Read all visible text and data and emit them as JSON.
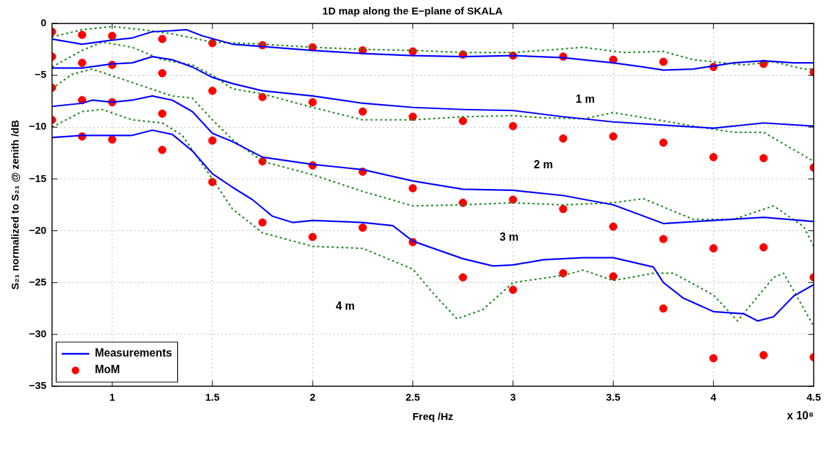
{
  "chart_data": {
    "type": "line",
    "title": "1D map along the E−plane of SKALA",
    "xlabel": "Freq /Hz",
    "ylabel": "S₂₁ normalized to S₂₁ @ zenith /dB",
    "xlim": [
      0.7,
      4.5
    ],
    "xticks": [
      1,
      1.5,
      2,
      2.5,
      3,
      3.5,
      4,
      4.5
    ],
    "ylim": [
      -35,
      0
    ],
    "yticks": [
      -35,
      -30,
      -25,
      -20,
      -15,
      -10,
      -5,
      0
    ],
    "grid": true,
    "legend": "bottom left",
    "annotations": [
      "1 m",
      "2 m",
      "3 m",
      "4 m",
      "x 10⁸"
    ],
    "series": [
      {
        "name": "Measurements",
        "type": "line",
        "color": "#0000ff",
        "line_style": "solid",
        "marker": "none",
        "x": [
          0.7,
          0.85,
          1.0,
          1.1,
          1.2,
          1.3,
          1.37,
          1.45,
          1.6,
          1.8,
          2.0,
          2.25,
          2.5,
          2.75,
          3.0,
          3.25,
          3.5,
          3.65,
          3.75,
          3.9,
          4.0,
          4.1,
          4.25,
          4.4,
          4.5
        ],
        "values": [
          -1.5,
          -2.0,
          -1.6,
          -1.4,
          -0.8,
          -0.7,
          -0.6,
          -1.2,
          -2.0,
          -2.3,
          -2.6,
          -2.9,
          -3.1,
          -3.2,
          -3.1,
          -3.3,
          -3.8,
          -4.2,
          -4.5,
          -4.4,
          -4.1,
          -3.8,
          -3.6,
          -3.8,
          -3.8
        ]
      },
      {
        "type": "line",
        "color": "#0000ff",
        "line_style": "solid",
        "marker": "none",
        "x": [
          0.7,
          0.85,
          1.0,
          1.1,
          1.2,
          1.3,
          1.4,
          1.5,
          1.6,
          1.75,
          2.0,
          2.25,
          2.5,
          2.75,
          3.0,
          3.25,
          3.5,
          3.75,
          4.0,
          4.25,
          4.5
        ],
        "values": [
          -4.3,
          -4.3,
          -3.9,
          -3.8,
          -3.2,
          -3.5,
          -4.2,
          -5.2,
          -5.8,
          -6.5,
          -7.0,
          -7.7,
          -8.1,
          -8.3,
          -8.4,
          -9.0,
          -9.5,
          -9.8,
          -10.1,
          -9.6,
          -9.9
        ]
      },
      {
        "type": "line",
        "color": "#0000ff",
        "line_style": "solid",
        "marker": "none",
        "x": [
          0.7,
          0.85,
          0.9,
          1.0,
          1.1,
          1.2,
          1.3,
          1.4,
          1.5,
          1.6,
          1.75,
          2.0,
          2.25,
          2.5,
          2.75,
          3.0,
          3.25,
          3.5,
          3.75,
          4.0,
          4.25,
          4.5
        ],
        "values": [
          -8.0,
          -7.7,
          -7.4,
          -7.6,
          -7.4,
          -7.0,
          -7.4,
          -8.5,
          -10.6,
          -11.4,
          -12.9,
          -13.6,
          -14.1,
          -15.2,
          -16.0,
          -16.1,
          -16.6,
          -17.5,
          -19.3,
          -19.0,
          -18.7,
          -19.1
        ]
      },
      {
        "type": "line",
        "color": "#0000ff",
        "line_style": "solid",
        "marker": "none",
        "x": [
          0.7,
          0.85,
          1.0,
          1.1,
          1.2,
          1.3,
          1.4,
          1.5,
          1.6,
          1.7,
          1.8,
          1.9,
          2.0,
          2.25,
          2.4,
          2.5,
          2.75,
          2.9,
          3.0,
          3.15,
          3.35,
          3.5,
          3.7,
          3.75,
          3.85,
          4.0,
          4.15,
          4.22,
          4.3,
          4.4,
          4.5
        ],
        "values": [
          -11.0,
          -10.8,
          -10.8,
          -10.8,
          -10.3,
          -10.7,
          -12.3,
          -14.5,
          -15.8,
          -17.0,
          -18.6,
          -19.2,
          -19.0,
          -19.2,
          -19.5,
          -21.0,
          -22.7,
          -23.4,
          -23.3,
          -22.8,
          -22.6,
          -22.6,
          -23.5,
          -25.0,
          -26.5,
          -27.8,
          -28.0,
          -28.7,
          -28.3,
          -26.3,
          -25.2
        ]
      },
      {
        "color": "#1e8c1e",
        "line_style": "dotted",
        "marker": "none",
        "x": [
          0.7,
          0.85,
          1.0,
          1.15,
          1.3,
          1.5,
          1.75,
          2.0,
          2.25,
          2.5,
          2.75,
          3.0,
          3.15,
          3.35,
          3.55,
          3.75,
          3.9,
          4.15,
          4.3,
          4.45,
          4.5
        ],
        "values": [
          -1.3,
          -0.6,
          -0.3,
          -0.6,
          -1.0,
          -1.8,
          -2.0,
          -2.3,
          -2.5,
          -2.6,
          -2.8,
          -2.8,
          -2.6,
          -2.3,
          -2.8,
          -2.7,
          -3.5,
          -4.0,
          -3.7,
          -4.4,
          -4.4
        ]
      },
      {
        "type": "line",
        "color": "#1e8c1e",
        "line_style": "dotted",
        "marker": "none",
        "x": [
          0.7,
          0.85,
          0.95,
          1.1,
          1.25,
          1.4,
          1.5,
          1.6,
          1.75,
          2.0,
          2.25,
          2.5,
          2.75,
          3.0,
          3.15,
          3.35,
          3.5,
          3.75,
          3.9,
          4.1,
          4.25,
          4.5
        ],
        "values": [
          -4.2,
          -2.6,
          -1.8,
          -2.3,
          -3.5,
          -4.0,
          -5.0,
          -6.3,
          -6.8,
          -8.1,
          -9.3,
          -9.3,
          -9.0,
          -8.9,
          -9.1,
          -9.2,
          -8.6,
          -9.4,
          -9.9,
          -10.5,
          -10.5,
          -13.3
        ]
      },
      {
        "type": "line",
        "color": "#1e8c1e",
        "line_style": "dotted",
        "marker": "none",
        "x": [
          0.7,
          0.8,
          0.9,
          1.1,
          1.3,
          1.4,
          1.5,
          1.6,
          1.75,
          2.0,
          2.25,
          2.5,
          2.75,
          3.0,
          3.25,
          3.5,
          3.65,
          3.9,
          4.1,
          4.3,
          4.45,
          4.5
        ],
        "values": [
          -6.3,
          -4.9,
          -4.4,
          -5.7,
          -7.0,
          -7.2,
          -9.3,
          -11.2,
          -13.3,
          -14.6,
          -16.2,
          -17.6,
          -17.5,
          -17.3,
          -17.5,
          -17.3,
          -16.9,
          -18.9,
          -18.9,
          -17.6,
          -19.6,
          -21.5
        ]
      },
      {
        "type": "line",
        "color": "#1e8c1e",
        "line_style": "dotted",
        "marker": "none",
        "x": [
          0.7,
          0.85,
          0.95,
          1.1,
          1.25,
          1.35,
          1.5,
          1.6,
          1.75,
          2.0,
          2.25,
          2.5,
          2.6,
          2.72,
          2.85,
          3.0,
          3.25,
          3.35,
          3.5,
          3.7,
          3.8,
          4.0,
          4.12,
          4.3,
          4.35,
          4.5
        ],
        "values": [
          -10.0,
          -8.5,
          -8.3,
          -9.3,
          -9.6,
          -10.8,
          -15.0,
          -17.9,
          -20.2,
          -21.5,
          -21.7,
          -23.7,
          -26.0,
          -28.5,
          -27.6,
          -25.0,
          -24.3,
          -23.8,
          -24.8,
          -24.1,
          -24.1,
          -26.2,
          -28.7,
          -24.5,
          -24.1,
          -29.2
        ]
      },
      {
        "name": "MoM",
        "type": "scatter",
        "color": "#ff0000",
        "marker": "circle",
        "x": [
          0.7,
          0.85,
          1.0,
          1.25,
          1.5,
          1.75,
          2.0,
          2.25,
          2.5,
          2.75,
          3.0,
          3.25,
          3.5,
          3.75,
          4.0,
          4.25,
          4.5
        ],
        "values": [
          -0.8,
          -1.1,
          -1.2,
          -1.5,
          -1.9,
          -2.1,
          -2.3,
          -2.6,
          -2.7,
          -3.0,
          -3.1,
          -3.2,
          -3.5,
          -3.7,
          -4.2,
          -3.9,
          -4.7
        ]
      },
      {
        "type": "scatter",
        "color": "#ff0000",
        "marker": "circle",
        "x": [
          0.7,
          0.85,
          1.0,
          1.25,
          1.5,
          1.75,
          2.0,
          2.25,
          2.5,
          2.75,
          3.0,
          3.25,
          3.5,
          3.75,
          4.0,
          4.25,
          4.5
        ],
        "values": [
          -3.2,
          -3.8,
          -4.0,
          -4.8,
          -6.5,
          -7.1,
          -7.6,
          -8.5,
          -9.0,
          -9.4,
          -9.9,
          -11.1,
          -10.9,
          -11.5,
          -12.9,
          -13.0,
          -13.9
        ]
      },
      {
        "type": "scatter",
        "color": "#ff0000",
        "marker": "circle",
        "x": [
          0.7,
          0.85,
          1.0,
          1.25,
          1.5,
          1.75,
          2.0,
          2.25,
          2.5,
          2.75,
          3.0,
          3.25,
          3.5,
          3.75,
          4.0,
          4.25,
          4.5
        ],
        "values": [
          -6.2,
          -7.4,
          -7.6,
          -8.7,
          -11.3,
          -13.3,
          -13.7,
          -14.3,
          -15.9,
          -17.3,
          -17.0,
          -17.9,
          -19.6,
          -20.8,
          -21.7,
          -21.6,
          -24.5
        ]
      },
      {
        "type": "scatter",
        "color": "#ff0000",
        "marker": "circle",
        "x": [
          0.7,
          0.85,
          1.0,
          1.25,
          1.5,
          1.75,
          2.0,
          2.25,
          2.5,
          2.75,
          3.0,
          3.25,
          3.5,
          3.75,
          4.0,
          4.25,
          4.5
        ],
        "values": [
          -9.3,
          -10.9,
          -11.2,
          -12.2,
          -15.3,
          -19.2,
          -20.6,
          -19.7,
          -21.1,
          -24.5,
          -25.7,
          -24.1,
          -24.4,
          -27.5,
          -32.3,
          -32.0,
          -32.2
        ]
      }
    ]
  }
}
